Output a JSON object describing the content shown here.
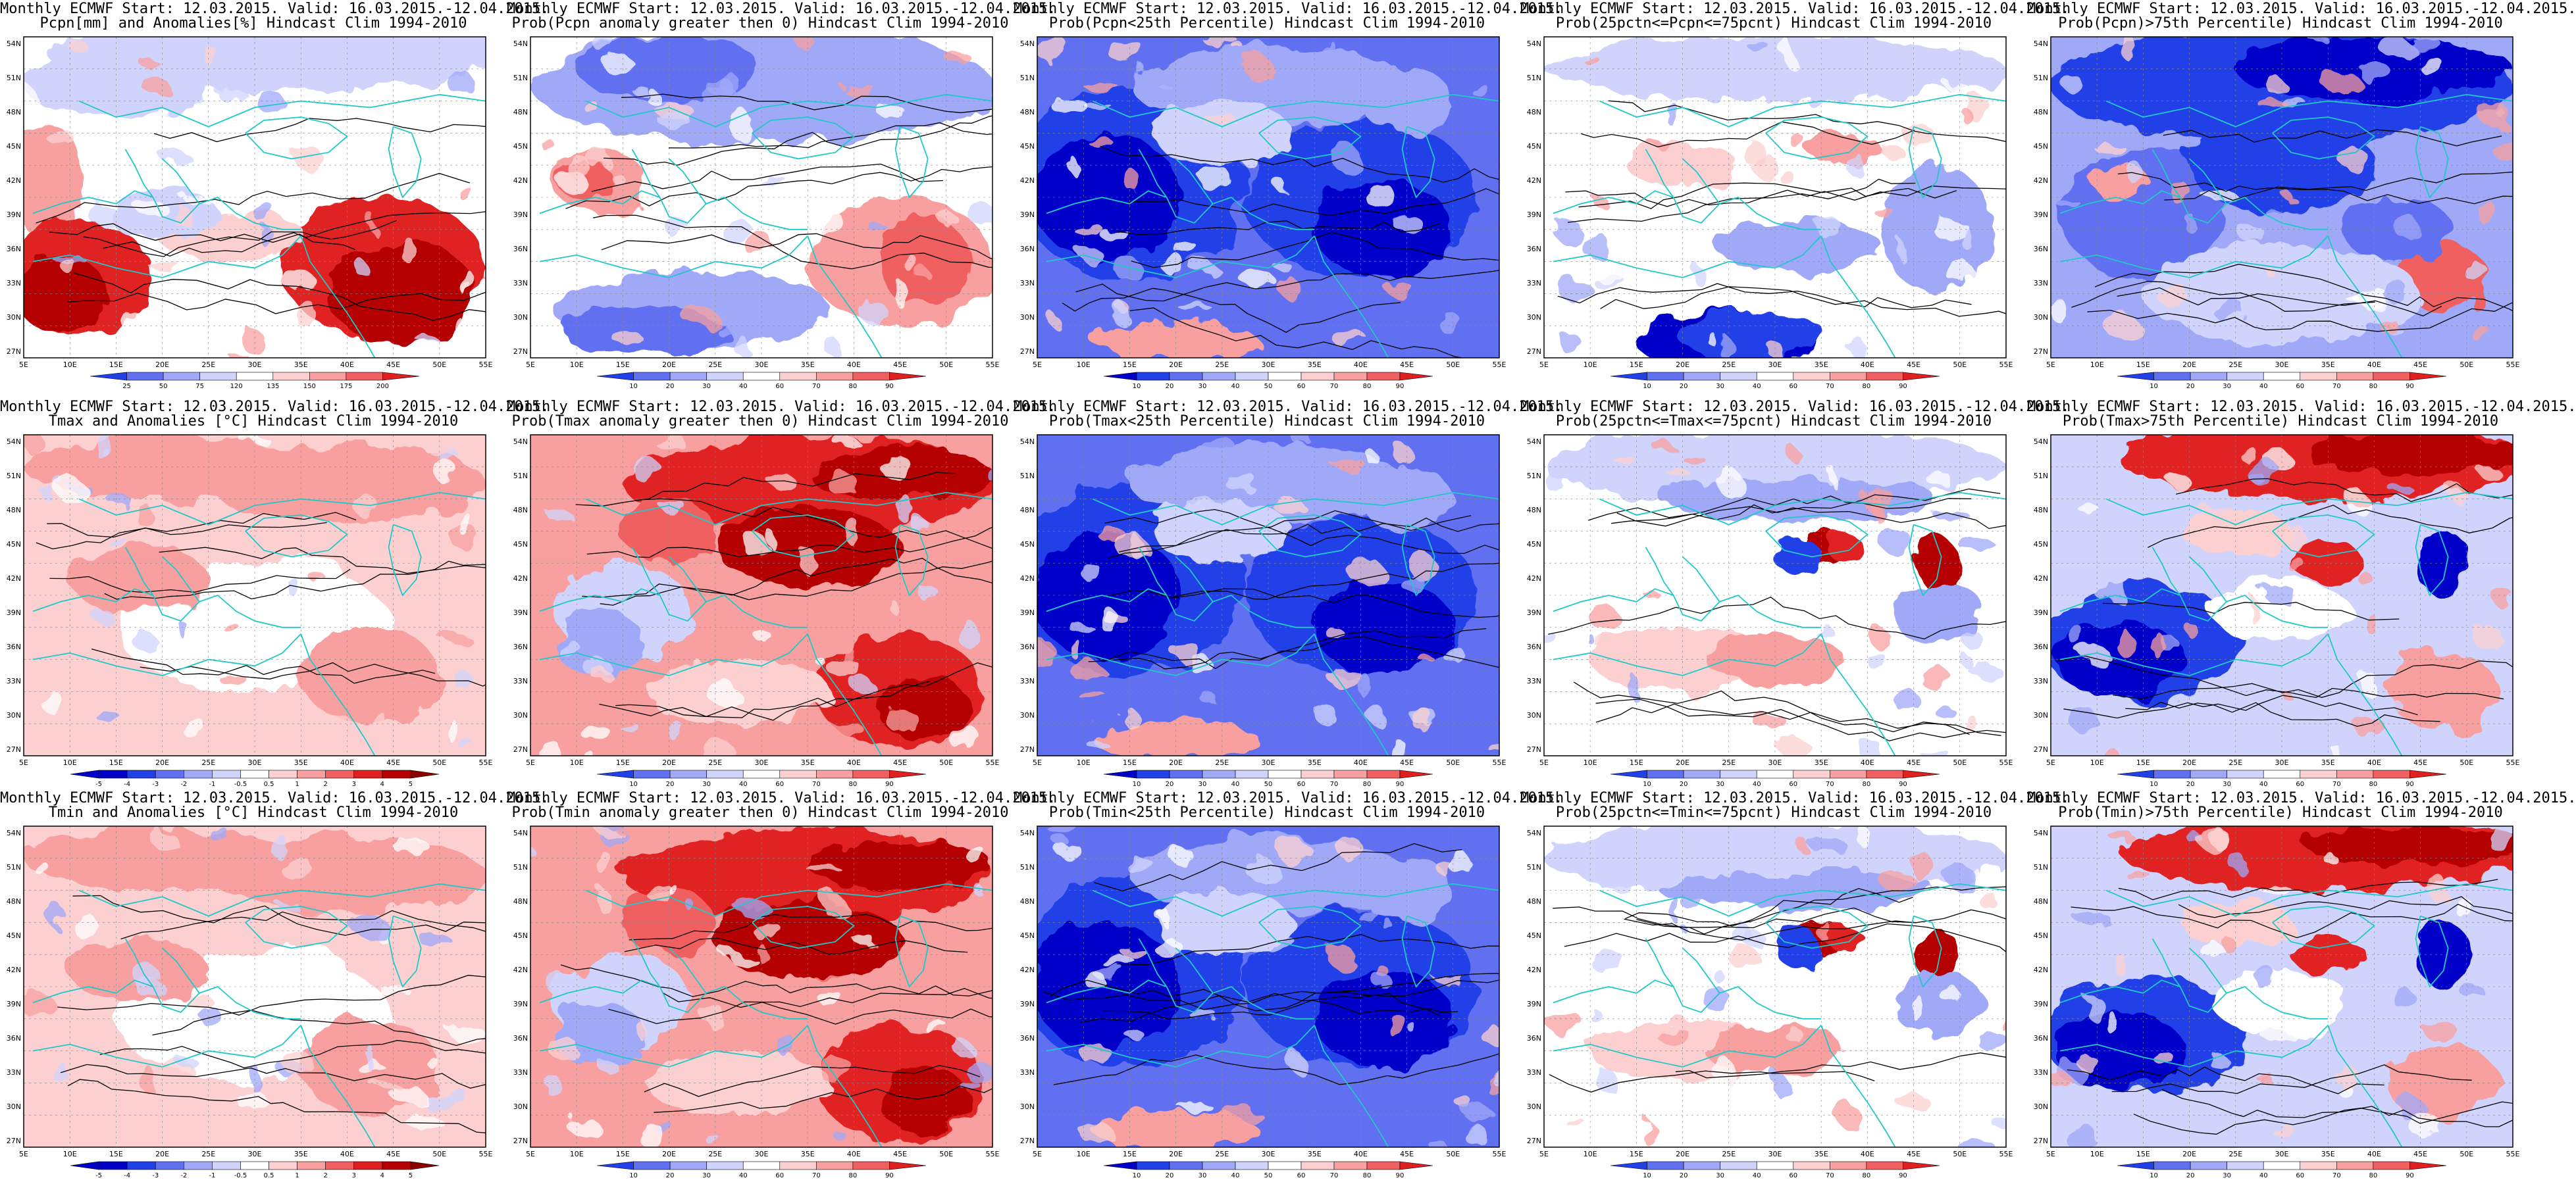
{
  "panels": [
    {
      "id": "r1c1",
      "title_line1": "Monthly ECMWF Start: 12.03.2015. Valid: 16.03.2015.-12.04.2015.",
      "title_line2": "Pcpn[mm] and Anomalies[%] Hindcast Clim 1994-2010",
      "colorbar_ticks": [
        "25",
        "50",
        "75",
        "120",
        "135",
        "150",
        "175",
        "200"
      ],
      "palette": "pcpn_anom",
      "scheme": "dry_south"
    },
    {
      "id": "r1c2",
      "title_line1": "Monthly ECMWF Start: 12.03.2015. Valid: 16.03.2015.-12.04.2015.",
      "title_line2": "Prob(Pcpn anomaly greater then 0) Hindcast Clim 1994-2010",
      "colorbar_ticks": [
        "10",
        "20",
        "30",
        "40",
        "60",
        "70",
        "80",
        "90"
      ],
      "palette": "prob",
      "scheme": "mixed_wet_north"
    },
    {
      "id": "r1c3",
      "title_line1": "Monthly ECMWF Start: 12.03.2015. Valid: 16.03.2015.-12.04.2015.",
      "title_line2": "Prob(Pcpn<25th Percentile) Hindcast Clim 1994-2010",
      "colorbar_ticks": [
        "10",
        "20",
        "30",
        "40",
        "50",
        "60",
        "70",
        "80",
        "90"
      ],
      "palette": "prob",
      "scheme": "deep_blue"
    },
    {
      "id": "r1c4",
      "title_line1": "Monthly ECMWF Start: 12.03.2015. Valid: 16.03.2015.-12.04.2015.",
      "title_line2": "Prob(25pctn<=Pcpn<=75pcnt) Hindcast Clim 1994-2010",
      "colorbar_ticks": [
        "10",
        "20",
        "30",
        "40",
        "60",
        "70",
        "80",
        "90"
      ],
      "palette": "prob",
      "scheme": "pale_mixed"
    },
    {
      "id": "r1c5",
      "title_line1": "Monthly ECMWF Start: 12.03.2015. Valid: 16.03.2015.-12.04.2015.",
      "title_line2": "Prob(Pcpn)>75th Percentile) Hindcast Clim 1994-2010",
      "colorbar_ticks": [
        "10",
        "20",
        "30",
        "40",
        "60",
        "70",
        "80",
        "90"
      ],
      "palette": "prob",
      "scheme": "blue_north"
    },
    {
      "id": "r2c1",
      "title_line1": "Monthly ECMWF Start: 12.03.2015. Valid: 16.03.2015.-12.04.2015.",
      "title_line2": "Tmax and Anomalies [°C] Hindcast Clim 1994-2010",
      "colorbar_ticks": [
        "-5",
        "-4",
        "-3",
        "-2",
        "-1",
        "-0.5",
        "0.5",
        "1",
        "2",
        "3",
        "4",
        "5"
      ],
      "palette": "temp_anom",
      "scheme": "light_red"
    },
    {
      "id": "r2c2",
      "title_line1": "Monthly ECMWF Start: 12.03.2015. Valid: 16.03.2015.-12.04.2015.",
      "title_line2": "Prob(Tmax anomaly greater then 0) Hindcast Clim 1994-2010",
      "colorbar_ticks": [
        "10",
        "20",
        "30",
        "40",
        "60",
        "70",
        "80",
        "90"
      ],
      "palette": "prob",
      "scheme": "red_hot"
    },
    {
      "id": "r2c3",
      "title_line1": "Monthly ECMWF Start: 12.03.2015. Valid: 16.03.2015.-12.04.2015.",
      "title_line2": "Prob(Tmax<25th Percentile) Hindcast Clim 1994-2010",
      "colorbar_ticks": [
        "10",
        "20",
        "30",
        "40",
        "50",
        "60",
        "70",
        "80",
        "90"
      ],
      "palette": "prob",
      "scheme": "deep_blue"
    },
    {
      "id": "r2c4",
      "title_line1": "Monthly ECMWF Start: 12.03.2015. Valid: 16.03.2015.-12.04.2015.",
      "title_line2": "Prob(25pctn<=Tmax<=75pcnt) Hindcast Clim 1994-2010",
      "colorbar_ticks": [
        "10",
        "20",
        "30",
        "40",
        "60",
        "70",
        "80",
        "90"
      ],
      "palette": "prob",
      "scheme": "pale_blue_top"
    },
    {
      "id": "r2c5",
      "title_line1": "Monthly ECMWF Start: 12.03.2015. Valid: 16.03.2015.-12.04.2015.",
      "title_line2": "Prob(Tmax>75th Percentile) Hindcast Clim 1994-2010",
      "colorbar_ticks": [
        "10",
        "20",
        "30",
        "40",
        "60",
        "70",
        "80",
        "90"
      ],
      "palette": "prob",
      "scheme": "red_top_blue_sw"
    },
    {
      "id": "r3c1",
      "title_line1": "Monthly ECMWF Start: 12.03.2015. Valid: 16.03.2015.-12.04.2015.",
      "title_line2": "Tmin and Anomalies [°C] Hindcast Clim 1994-2010",
      "colorbar_ticks": [
        "-5",
        "-4",
        "-3",
        "-2",
        "-1",
        "-0.5",
        "0.5",
        "1",
        "2",
        "3",
        "4",
        "5"
      ],
      "palette": "temp_anom",
      "scheme": "light_red"
    },
    {
      "id": "r3c2",
      "title_line1": "Monthly ECMWF Start: 12.03.2015. Valid: 16.03.2015.-12.04.2015.",
      "title_line2": "Prob(Tmin anomaly greater then 0) Hindcast Clim 1994-2010",
      "colorbar_ticks": [
        "10",
        "20",
        "30",
        "40",
        "60",
        "70",
        "80",
        "90"
      ],
      "palette": "prob",
      "scheme": "red_hot"
    },
    {
      "id": "r3c3",
      "title_line1": "Monthly ECMWF Start: 12.03.2015. Valid: 16.03.2015.-12.04.2015.",
      "title_line2": "Prob(Tmin<25th Percentile) Hindcast Clim 1994-2010",
      "colorbar_ticks": [
        "10",
        "20",
        "30",
        "40",
        "50",
        "60",
        "70",
        "80",
        "90"
      ],
      "palette": "prob",
      "scheme": "deep_blue"
    },
    {
      "id": "r3c4",
      "title_line1": "Monthly ECMWF Start: 12.03.2015. Valid: 16.03.2015.-12.04.2015.",
      "title_line2": "Prob(25pctn<=Tmin<=75pcnt) Hindcast Clim 1994-2010",
      "colorbar_ticks": [
        "10",
        "20",
        "30",
        "40",
        "60",
        "70",
        "80",
        "90"
      ],
      "palette": "prob",
      "scheme": "pale_blue_top"
    },
    {
      "id": "r3c5",
      "title_line1": "Monthly ECMWF Start: 12.03.2015. Valid: 16.03.2015.-12.04.2015.",
      "title_line2": "Prob(Tmin)>75th Percentile) Hindcast Clim 1994-2010",
      "colorbar_ticks": [
        "10",
        "20",
        "30",
        "40",
        "60",
        "70",
        "80",
        "90"
      ],
      "palette": "prob",
      "scheme": "red_top_blue_sw"
    }
  ],
  "lat_labels": [
    "54N",
    "51N",
    "48N",
    "45N",
    "42N",
    "39N",
    "36N",
    "33N",
    "30N",
    "27N"
  ],
  "lon_labels": [
    "5E",
    "10E",
    "15E",
    "20E",
    "25E",
    "30E",
    "35E",
    "40E",
    "45E",
    "50E",
    "55E"
  ],
  "colors": {
    "dark_blue": "#0000c8",
    "blue": "#2040e8",
    "mid_blue": "#6070f0",
    "light_blue": "#a0a8f8",
    "pale_blue": "#d0d4fc",
    "white": "#ffffff",
    "pale_red": "#fcd0d0",
    "light_red": "#f8a0a0",
    "mid_red": "#f06060",
    "red": "#e02020",
    "dark_red": "#b40000",
    "coast": "#20c8c8",
    "contour": "#000000"
  }
}
